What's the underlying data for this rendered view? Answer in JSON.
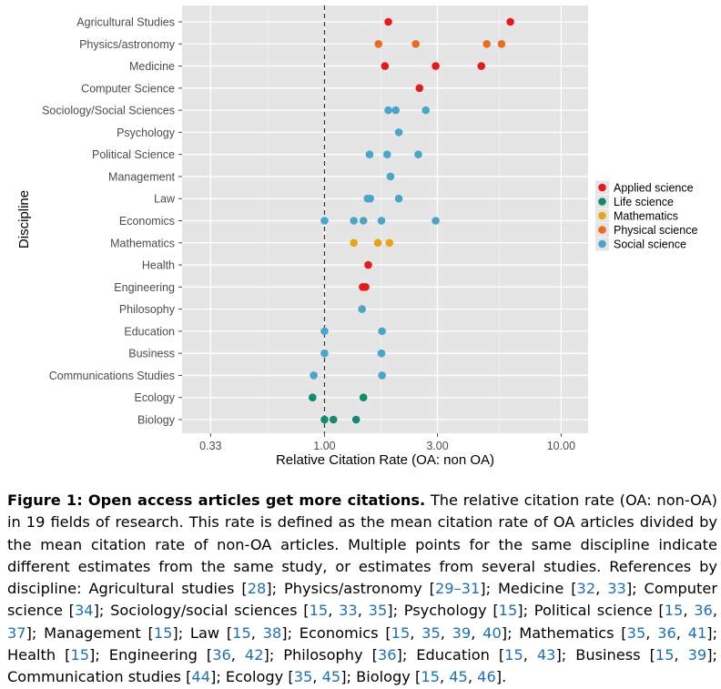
{
  "chart_data": {
    "type": "scatter",
    "xlabel": "Relative Citation Rate (OA: non OA)",
    "ylabel": "Discipline",
    "x_scale": "log",
    "xlim": [
      0.25,
      13.0
    ],
    "x_ticks": [
      0.33,
      1.0,
      3.0,
      10.0
    ],
    "x_tick_labels": [
      "0.33",
      "1.00",
      "3.00",
      "10.00"
    ],
    "reference_line": 1.0,
    "grid": true,
    "legend_position": "right",
    "categories": [
      "Agricultural Studies",
      "Physics/astronomy",
      "Medicine",
      "Computer Science",
      "Sociology/Social Sciences",
      "Psychology",
      "Political Science",
      "Management",
      "Law",
      "Economics",
      "Mathematics",
      "Health",
      "Engineering",
      "Philosophy",
      "Education",
      "Business",
      "Communications Studies",
      "Ecology",
      "Biology"
    ],
    "series": [
      {
        "name": "Applied science",
        "color": "#e41a1c",
        "points": [
          {
            "y": "Agricultural Studies",
            "x": 1.86
          },
          {
            "y": "Agricultural Studies",
            "x": 6.1
          },
          {
            "y": "Medicine",
            "x": 1.8
          },
          {
            "y": "Medicine",
            "x": 2.95
          },
          {
            "y": "Medicine",
            "x": 4.6
          },
          {
            "y": "Computer Science",
            "x": 2.52
          },
          {
            "y": "Health",
            "x": 1.53
          },
          {
            "y": "Engineering",
            "x": 1.45
          },
          {
            "y": "Engineering",
            "x": 1.49
          }
        ]
      },
      {
        "name": "Life science",
        "color": "#138a6e",
        "points": [
          {
            "y": "Ecology",
            "x": 0.89
          },
          {
            "y": "Ecology",
            "x": 1.46
          },
          {
            "y": "Biology",
            "x": 1.0
          },
          {
            "y": "Biology",
            "x": 1.09
          },
          {
            "y": "Biology",
            "x": 1.36
          }
        ]
      },
      {
        "name": "Mathematics",
        "color": "#e8a317",
        "points": [
          {
            "y": "Mathematics",
            "x": 1.33
          },
          {
            "y": "Mathematics",
            "x": 1.68
          },
          {
            "y": "Mathematics",
            "x": 1.88
          }
        ]
      },
      {
        "name": "Physical science",
        "color": "#ec6b1f",
        "points": [
          {
            "y": "Physics/astronomy",
            "x": 1.69
          },
          {
            "y": "Physics/astronomy",
            "x": 2.43
          },
          {
            "y": "Physics/astronomy",
            "x": 4.85
          },
          {
            "y": "Physics/astronomy",
            "x": 5.6
          }
        ]
      },
      {
        "name": "Social science",
        "color": "#4aa5c9",
        "points": [
          {
            "y": "Sociology/Social Sciences",
            "x": 1.86
          },
          {
            "y": "Sociology/Social Sciences",
            "x": 2.0
          },
          {
            "y": "Sociology/Social Sciences",
            "x": 2.68
          },
          {
            "y": "Psychology",
            "x": 2.06
          },
          {
            "y": "Political Science",
            "x": 1.55
          },
          {
            "y": "Political Science",
            "x": 1.84
          },
          {
            "y": "Political Science",
            "x": 2.49
          },
          {
            "y": "Management",
            "x": 1.9
          },
          {
            "y": "Law",
            "x": 1.52
          },
          {
            "y": "Law",
            "x": 1.56
          },
          {
            "y": "Law",
            "x": 2.06
          },
          {
            "y": "Economics",
            "x": 1.0
          },
          {
            "y": "Economics",
            "x": 1.33
          },
          {
            "y": "Economics",
            "x": 1.46
          },
          {
            "y": "Economics",
            "x": 1.74
          },
          {
            "y": "Economics",
            "x": 2.95
          },
          {
            "y": "Philosophy",
            "x": 1.44
          },
          {
            "y": "Education",
            "x": 1.0
          },
          {
            "y": "Education",
            "x": 1.75
          },
          {
            "y": "Business",
            "x": 1.0
          },
          {
            "y": "Business",
            "x": 1.74
          },
          {
            "y": "Communications Studies",
            "x": 0.9
          },
          {
            "y": "Communications Studies",
            "x": 1.75
          }
        ]
      }
    ]
  },
  "caption": {
    "lead": "Figure 1: Open access articles get more citations.",
    "segments": [
      {
        "t": " The relative citation rate (OA: non-OA) in 19 fields of research.  This rate is defined as the mean citation rate of OA articles divided by the mean citation rate of non-OA articles.  Multiple points for the same discipline indicate different estimates from the same study, or estimates from several studies.  References by discipline: Agricultural studies ["
      },
      {
        "r": "28"
      },
      {
        "t": "]; Physics/astronomy ["
      },
      {
        "r": "29–31"
      },
      {
        "t": "]; Medicine ["
      },
      {
        "r": "32"
      },
      {
        "t": ", "
      },
      {
        "r": "33"
      },
      {
        "t": "]; Computer science ["
      },
      {
        "r": "34"
      },
      {
        "t": "]; Sociology/social sciences ["
      },
      {
        "r": "15"
      },
      {
        "t": ", "
      },
      {
        "r": "33"
      },
      {
        "t": ", "
      },
      {
        "r": "35"
      },
      {
        "t": "]; Psychology ["
      },
      {
        "r": "15"
      },
      {
        "t": "]; Political science ["
      },
      {
        "r": "15"
      },
      {
        "t": ", "
      },
      {
        "r": "36"
      },
      {
        "t": ", "
      },
      {
        "r": "37"
      },
      {
        "t": "]; Management ["
      },
      {
        "r": "15"
      },
      {
        "t": "]; Law ["
      },
      {
        "r": "15"
      },
      {
        "t": ", "
      },
      {
        "r": "38"
      },
      {
        "t": "]; Economics ["
      },
      {
        "r": "15"
      },
      {
        "t": ", "
      },
      {
        "r": "35"
      },
      {
        "t": ", "
      },
      {
        "r": "39"
      },
      {
        "t": ", "
      },
      {
        "r": "40"
      },
      {
        "t": "]; Mathematics ["
      },
      {
        "r": "35"
      },
      {
        "t": ", "
      },
      {
        "r": "36"
      },
      {
        "t": ", "
      },
      {
        "r": "41"
      },
      {
        "t": "]; Health ["
      },
      {
        "r": "15"
      },
      {
        "t": "]; Engineering ["
      },
      {
        "r": "36"
      },
      {
        "t": ", "
      },
      {
        "r": "42"
      },
      {
        "t": "]; Philosophy ["
      },
      {
        "r": "36"
      },
      {
        "t": "]; Education ["
      },
      {
        "r": "15"
      },
      {
        "t": ", "
      },
      {
        "r": "43"
      },
      {
        "t": "]; Business ["
      },
      {
        "r": "15"
      },
      {
        "t": ", "
      },
      {
        "r": "39"
      },
      {
        "t": "]; Communication studies ["
      },
      {
        "r": "44"
      },
      {
        "t": "]; Ecology ["
      },
      {
        "r": "35"
      },
      {
        "t": ", "
      },
      {
        "r": "45"
      },
      {
        "t": "]; Biology ["
      },
      {
        "r": "15"
      },
      {
        "t": ", "
      },
      {
        "r": "45"
      },
      {
        "t": ", "
      },
      {
        "r": "46"
      },
      {
        "t": "]."
      }
    ]
  }
}
